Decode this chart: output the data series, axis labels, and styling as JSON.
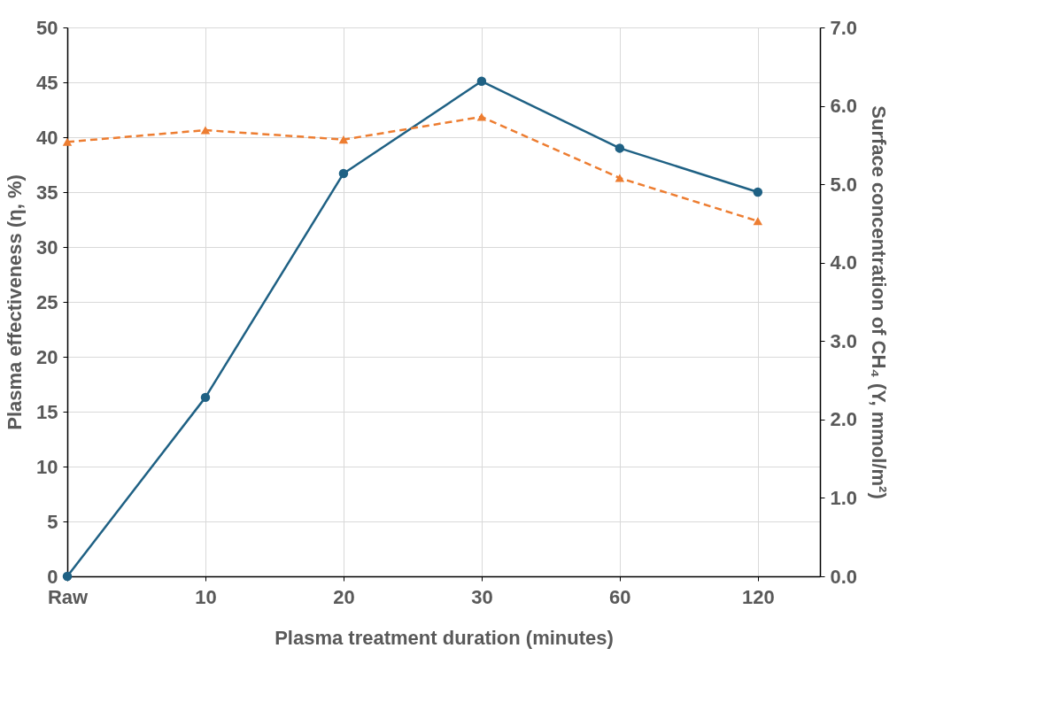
{
  "chart_data": {
    "type": "line",
    "xlabel": "Plasma treatment duration (minutes)",
    "ylabel": "Plasma effectiveness (η, %)",
    "y2label": "Surface concentration of CH₄ (Y, mmol/m²)",
    "categories": [
      "Raw",
      "10",
      "20",
      "30",
      "60",
      "120"
    ],
    "series": [
      {
        "color": "#1f6184",
        "values": [
          0,
          16.3,
          36.7,
          45.1,
          39.0,
          35.0
        ],
        "marker": "circle",
        "line_style": "solid"
      },
      {
        "color": "#ed7d31",
        "values": [
          5.54,
          5.69,
          5.57,
          5.86,
          5.08,
          4.53
        ],
        "axis": "y2",
        "marker": "triangle",
        "line_style": "dashed"
      }
    ],
    "ylim": [
      0,
      50
    ],
    "yticks": [
      0,
      5,
      10,
      15,
      20,
      25,
      30,
      35,
      40,
      45,
      50
    ],
    "y2lim": [
      0,
      7
    ],
    "y2ticks": [
      {
        "value": 0,
        "label": "0.0"
      },
      {
        "value": 1,
        "label": "1.0"
      },
      {
        "value": 2,
        "label": "2.0"
      },
      {
        "value": 3,
        "label": "3.0"
      },
      {
        "value": 4,
        "label": "4.0"
      },
      {
        "value": 5,
        "label": "5.0"
      },
      {
        "value": 6,
        "label": "6.0"
      },
      {
        "value": 7,
        "label": "7.0"
      }
    ],
    "grid": true
  }
}
